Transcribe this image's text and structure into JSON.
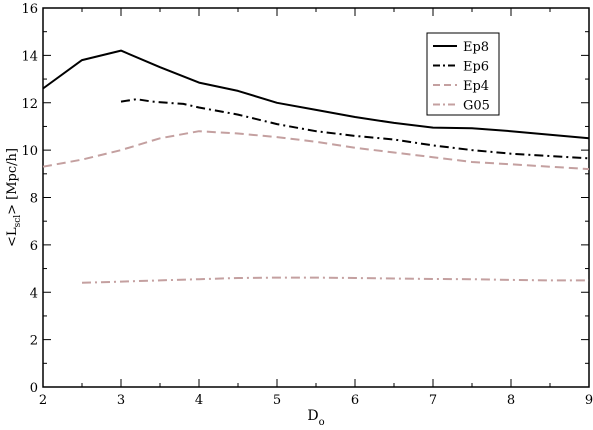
{
  "chart_data": {
    "type": "line",
    "title": "",
    "xlabel": {
      "main": "D",
      "sub": "o"
    },
    "ylabel": {
      "pre": "<L",
      "sub": "scl",
      "post": "> [Mpc/h]"
    },
    "xlim": [
      2,
      9
    ],
    "ylim": [
      0,
      16
    ],
    "xticks": [
      2,
      3,
      4,
      5,
      6,
      7,
      8,
      9
    ],
    "yticks": [
      0,
      2,
      4,
      6,
      8,
      10,
      12,
      14,
      16
    ],
    "xtick_labels": [
      "2",
      "3",
      "4",
      "5",
      "6",
      "7",
      "8",
      "9"
    ],
    "ytick_labels": [
      "0",
      "2",
      "4",
      "6",
      "8",
      "10",
      "12",
      "14",
      "16"
    ],
    "grid": false,
    "legend_position": "top-right",
    "series": [
      {
        "name": "Ep8",
        "style": "solid",
        "color": "#000000",
        "x": [
          2.0,
          2.5,
          3.0,
          3.5,
          4.0,
          4.5,
          5.0,
          5.5,
          6.0,
          6.5,
          7.0,
          7.5,
          8.0,
          8.5,
          9.0
        ],
        "y": [
          12.6,
          13.8,
          14.2,
          13.5,
          12.85,
          12.5,
          12.0,
          11.7,
          11.4,
          11.15,
          10.95,
          10.92,
          10.8,
          10.65,
          10.5
        ]
      },
      {
        "name": "Ep6",
        "style": "dashdot",
        "color": "#000000",
        "x": [
          3.0,
          3.2,
          3.4,
          3.6,
          3.8,
          4.0,
          4.5,
          5.0,
          5.5,
          6.0,
          6.5,
          7.0,
          7.5,
          8.0,
          8.5,
          9.0
        ],
        "y": [
          12.05,
          12.15,
          12.05,
          12.0,
          11.95,
          11.8,
          11.5,
          11.1,
          10.8,
          10.6,
          10.45,
          10.2,
          10.0,
          9.85,
          9.75,
          9.65
        ]
      },
      {
        "name": "Ep4",
        "style": "dashed",
        "color": "#c4a0a0",
        "x": [
          2.0,
          2.5,
          3.0,
          3.5,
          4.0,
          4.5,
          5.0,
          5.5,
          6.0,
          6.5,
          7.0,
          7.5,
          8.0,
          8.5,
          9.0
        ],
        "y": [
          9.3,
          9.6,
          10.0,
          10.5,
          10.8,
          10.7,
          10.55,
          10.35,
          10.1,
          9.9,
          9.7,
          9.5,
          9.4,
          9.3,
          9.2
        ]
      },
      {
        "name": "G05",
        "style": "dashdot",
        "color": "#c4a0a0",
        "x": [
          2.5,
          3.0,
          3.5,
          4.0,
          4.5,
          5.0,
          5.5,
          6.0,
          6.5,
          7.0,
          7.5,
          8.0,
          8.5,
          9.0
        ],
        "y": [
          4.4,
          4.45,
          4.5,
          4.55,
          4.6,
          4.62,
          4.62,
          4.6,
          4.58,
          4.56,
          4.55,
          4.52,
          4.5,
          4.5
        ]
      }
    ]
  }
}
